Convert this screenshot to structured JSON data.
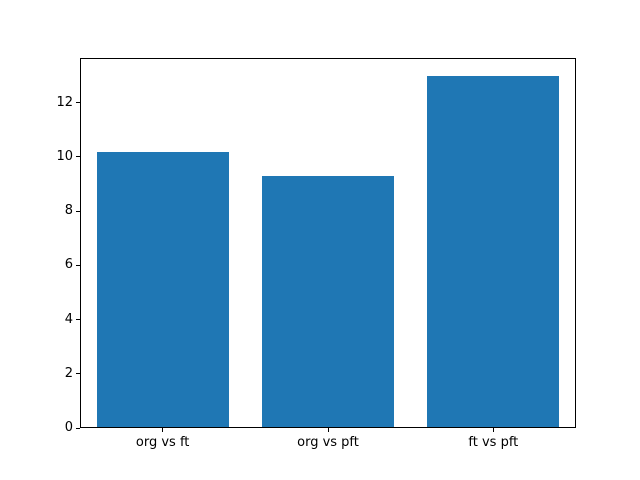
{
  "chart_data": {
    "type": "bar",
    "categories": [
      "org vs ft",
      "org vs pft",
      "ft vs pft"
    ],
    "values": [
      10.2,
      9.3,
      13.0
    ],
    "title": "",
    "xlabel": "",
    "ylabel": "",
    "ylim": [
      0,
      13.65
    ],
    "yticks": [
      0,
      2,
      4,
      6,
      8,
      10,
      12
    ],
    "bar_color": "#1f77b4",
    "bar_width_fraction": 0.8,
    "grid": false,
    "legend": null,
    "background_color": "#ffffff",
    "frame_color": "#000000",
    "text_color": "#000000"
  }
}
